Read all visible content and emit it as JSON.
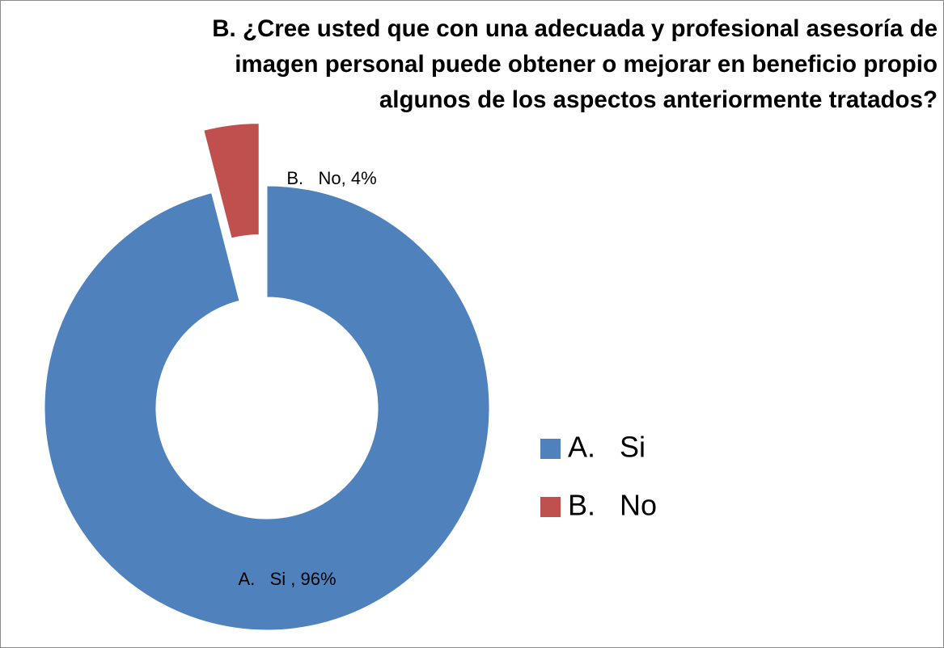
{
  "chart_data": {
    "type": "donut",
    "title": "B.   ¿Cree usted que con una adecuada y profesional asesoría de imagen personal puede obtener o mejorar en beneficio propio algunos de los aspectos anteriormente tratados?",
    "categories": [
      "A.   Si",
      "B.   No"
    ],
    "values": [
      96,
      4
    ],
    "value_labels": [
      "A.   Si , 96%",
      "B.   No, 4%"
    ],
    "colors": [
      "#4f81bd",
      "#c0504d"
    ],
    "explode": [
      false,
      true
    ],
    "legend": "right"
  }
}
